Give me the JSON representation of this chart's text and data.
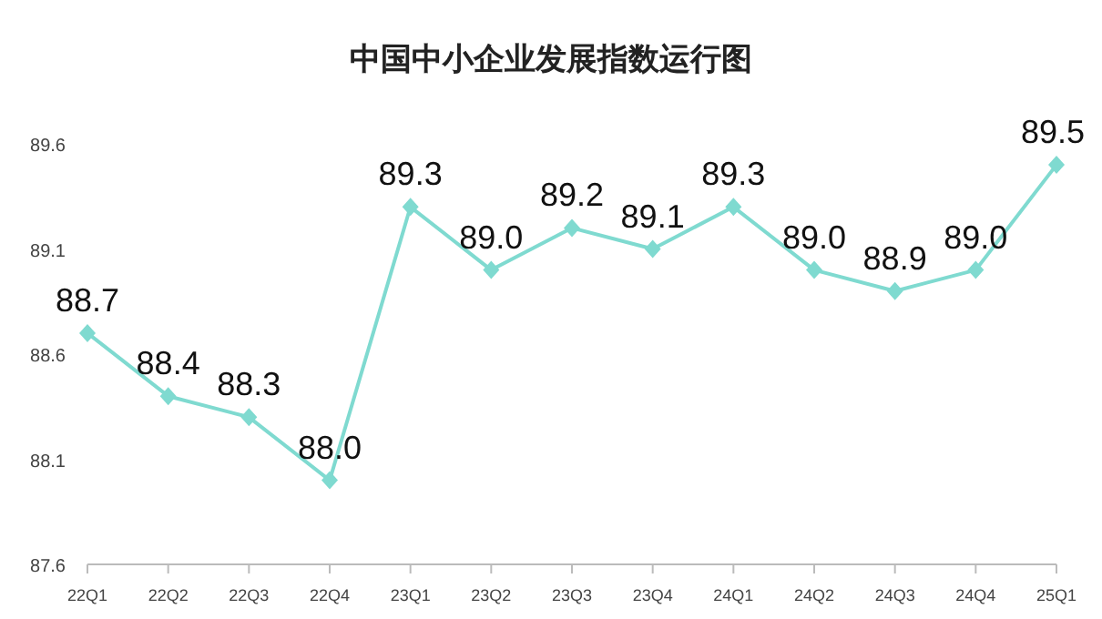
{
  "chart_data": {
    "type": "line",
    "title": "中国中小企业发展指数运行图",
    "categories": [
      "22Q1",
      "22Q2",
      "22Q3",
      "22Q4",
      "23Q1",
      "23Q2",
      "23Q3",
      "23Q4",
      "24Q1",
      "24Q2",
      "24Q3",
      "24Q4",
      "25Q1"
    ],
    "values": [
      88.7,
      88.4,
      88.3,
      88.0,
      89.3,
      89.0,
      89.2,
      89.1,
      89.3,
      89.0,
      88.9,
      89.0,
      89.5
    ],
    "color": "#7fdad0",
    "ylim": [
      87.6,
      89.6
    ],
    "yticks": [
      87.6,
      88.1,
      88.6,
      89.1,
      89.6
    ],
    "marker": "diamond",
    "value_labels": [
      "88.7",
      "88.4",
      "88.3",
      "88.0",
      "89.3",
      "89.0",
      "89.2",
      "89.1",
      "89.3",
      "89.0",
      "88.9",
      "89.0",
      "89.5"
    ]
  }
}
